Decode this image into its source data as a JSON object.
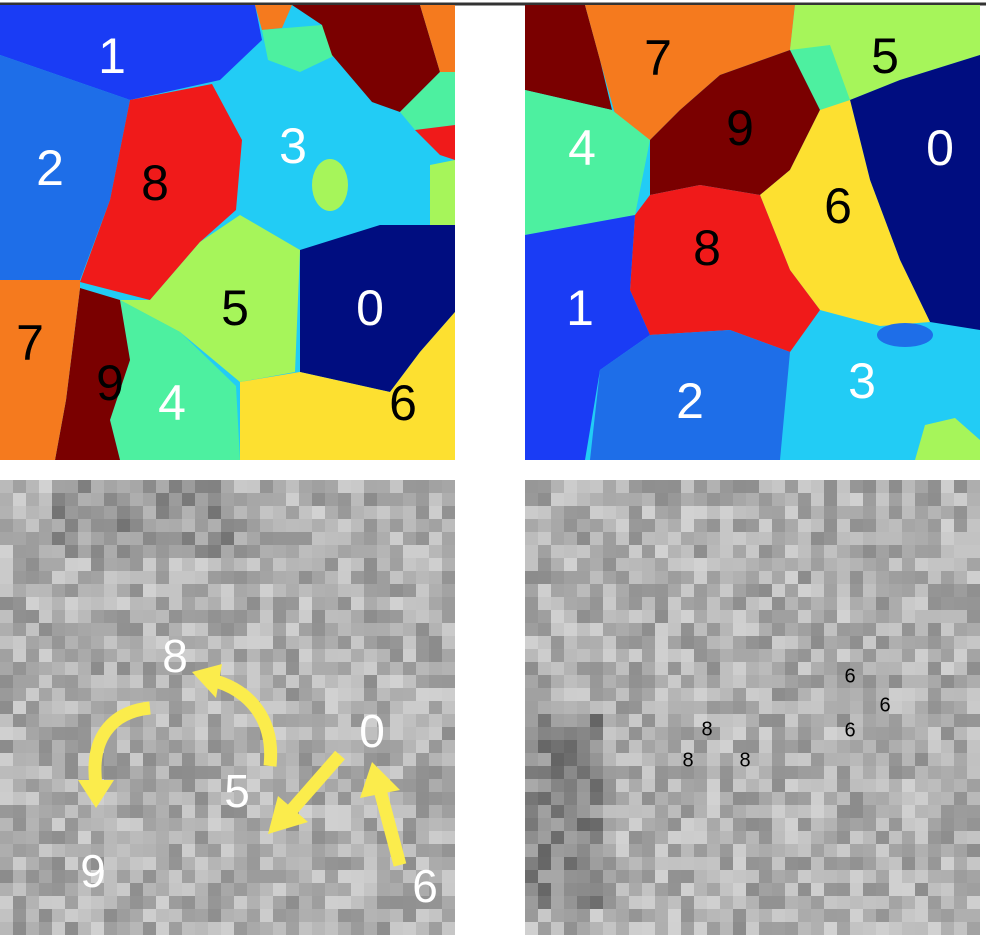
{
  "top_left": {
    "labels": [
      "1",
      "2",
      "8",
      "3",
      "5",
      "0",
      "7",
      "9",
      "4",
      "6"
    ]
  },
  "top_right": {
    "labels": [
      "7",
      "5",
      "4",
      "9",
      "0",
      "6",
      "8",
      "1",
      "2",
      "3"
    ]
  },
  "bottom_left": {
    "labels": [
      "8",
      "0",
      "5",
      "9",
      "6"
    ]
  },
  "bottom_right": {
    "labels": [
      "6",
      "6",
      "6",
      "8",
      "8",
      "8"
    ]
  }
}
